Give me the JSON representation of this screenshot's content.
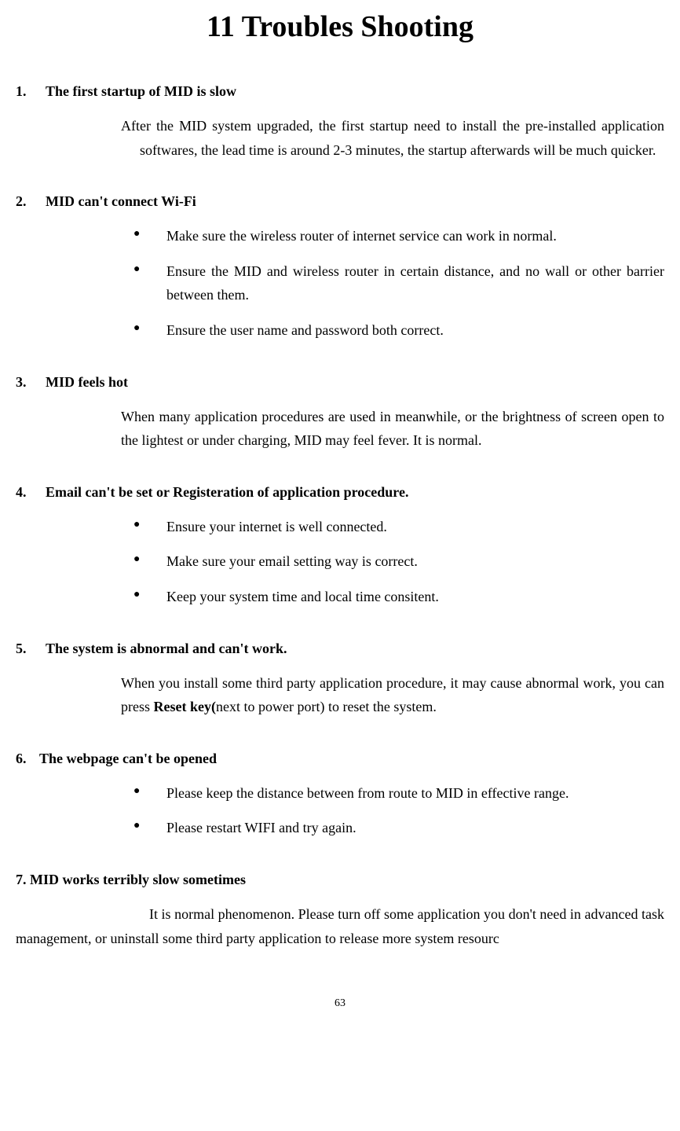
{
  "title": "11 Troubles Shooting",
  "sections": [
    {
      "num": "1.",
      "heading": "The first startup of MID is slow",
      "body": "After the MID system upgraded, the first startup need to install the pre-installed application softwares, the lead time is around 2-3 minutes, the startup afterwards will be much quicker."
    },
    {
      "num": "2.",
      "heading": "MID can't connect Wi-Fi",
      "bullets": [
        "Make sure the wireless router of internet service can work in normal.",
        "Ensure the MID and wireless router in certain distance, and no wall or other barrier between them.",
        "Ensure the user name and password both correct."
      ]
    },
    {
      "num": "3.",
      "heading": "MID feels hot",
      "body": "When many application procedures are used in meanwhile, or the brightness of screen open to the lightest or under charging, MID may feel fever. It is normal."
    },
    {
      "num": "4.",
      "heading": "Email can't be set or Registeration of application procedure.",
      "bullets": [
        "Ensure your internet is well connected.",
        "Make sure your email setting way is correct.",
        "Keep your system time and local time consitent."
      ]
    },
    {
      "num": "5.",
      "heading": " The system is abnormal and can't work.",
      "body_pre": "When you install some third party application procedure, it may cause abnormal work, you can press ",
      "body_bold": "Reset key(",
      "body_post": "next to power port) to reset the system."
    },
    {
      "num": "6.",
      "heading": "The webpage can't be opened",
      "bullets": [
        "Please keep the distance between from route to MID in effective range.",
        "Please restart WIFI and try again."
      ]
    },
    {
      "heading7": "7. MID works terribly slow sometimes",
      "body7": "It is normal phenomenon. Please turn off some application you don't need in advanced task management, or uninstall some third party application to release more system resourc"
    }
  ],
  "pageNumber": "63"
}
